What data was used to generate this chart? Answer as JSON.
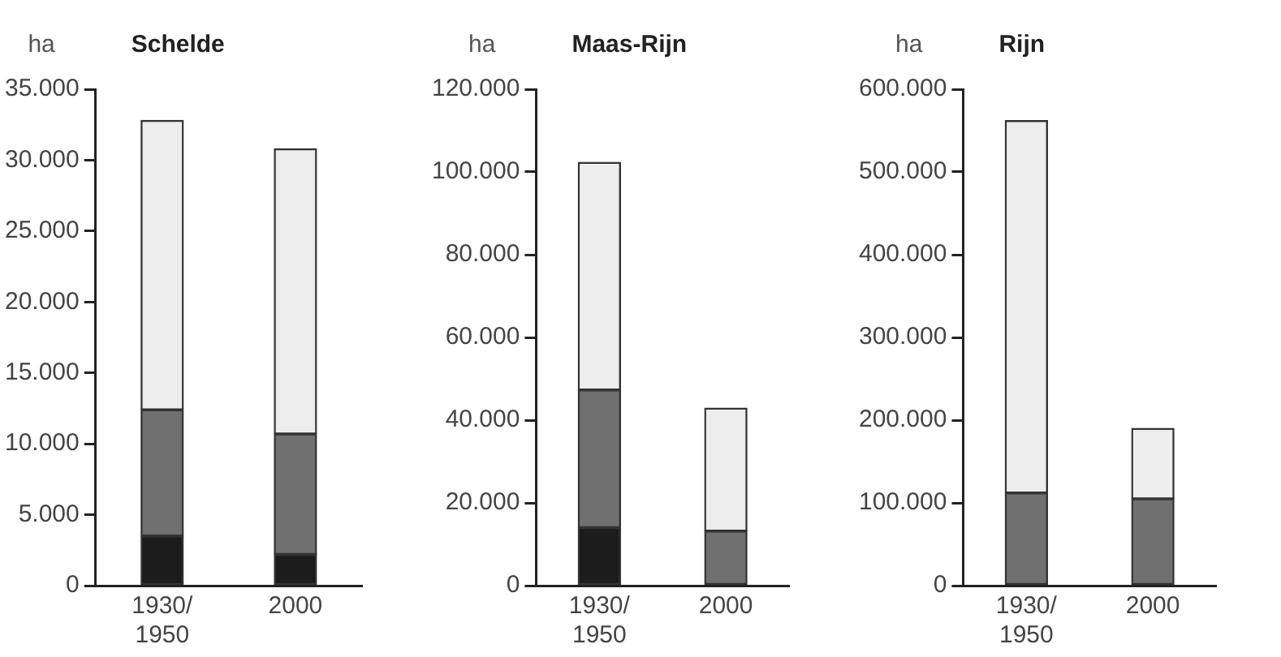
{
  "chart_data": [
    {
      "type": "bar",
      "title": "Schelde",
      "ylabel": "ha",
      "stacked": true,
      "categories": [
        "1930/1950",
        "2000"
      ],
      "series": [
        {
          "color": "#1c1c1c",
          "values": [
            3500,
            2200
          ]
        },
        {
          "color": "#707070",
          "values": [
            8900,
            8500
          ]
        },
        {
          "color": "#ededed",
          "values": [
            20400,
            20100
          ]
        }
      ],
      "ylim": [
        0,
        35000
      ],
      "yticks": [
        {
          "value": 0,
          "label": "0"
        },
        {
          "value": 5000,
          "label": "5.000"
        },
        {
          "value": 10000,
          "label": "10.000"
        },
        {
          "value": 15000,
          "label": "15.000"
        },
        {
          "value": 20000,
          "label": "20.000"
        },
        {
          "value": 25000,
          "label": "25.000"
        },
        {
          "value": 30000,
          "label": "30.000"
        },
        {
          "value": 35000,
          "label": "35.000"
        }
      ],
      "grid": false,
      "legend": false
    },
    {
      "type": "bar",
      "title": "Maas-Rijn",
      "ylabel": "ha",
      "stacked": true,
      "categories": [
        "1930/1950",
        "2000"
      ],
      "series": [
        {
          "color": "#1c1c1c",
          "values": [
            14000,
            null
          ]
        },
        {
          "color": "#707070",
          "values": [
            33300,
            13200
          ]
        },
        {
          "color": "#ededed",
          "values": [
            55000,
            29700
          ]
        }
      ],
      "ylim": [
        0,
        120000
      ],
      "yticks": [
        {
          "value": 0,
          "label": "0"
        },
        {
          "value": 20000,
          "label": "20.000"
        },
        {
          "value": 40000,
          "label": "40.000"
        },
        {
          "value": 60000,
          "label": "60.000"
        },
        {
          "value": 80000,
          "label": "80.000"
        },
        {
          "value": 100000,
          "label": "100.000"
        },
        {
          "value": 120000,
          "label": "120.000"
        }
      ],
      "grid": false,
      "legend": false
    },
    {
      "type": "bar",
      "title": "Rijn",
      "ylabel": "ha",
      "stacked": true,
      "categories": [
        "1930/1950",
        "2000"
      ],
      "series": [
        {
          "color": "#707070",
          "values": [
            112000,
            105000
          ]
        },
        {
          "color": "#ededed",
          "values": [
            450000,
            85000
          ]
        }
      ],
      "ylim": [
        0,
        600000
      ],
      "yticks": [
        {
          "value": 0,
          "label": "0"
        },
        {
          "value": 100000,
          "label": "100.000"
        },
        {
          "value": 200000,
          "label": "200.000"
        },
        {
          "value": 300000,
          "label": "300.000"
        },
        {
          "value": 400000,
          "label": "400.000"
        },
        {
          "value": 500000,
          "label": "500.000"
        },
        {
          "value": 600000,
          "label": "600.000"
        }
      ],
      "grid": false,
      "legend": false
    }
  ]
}
